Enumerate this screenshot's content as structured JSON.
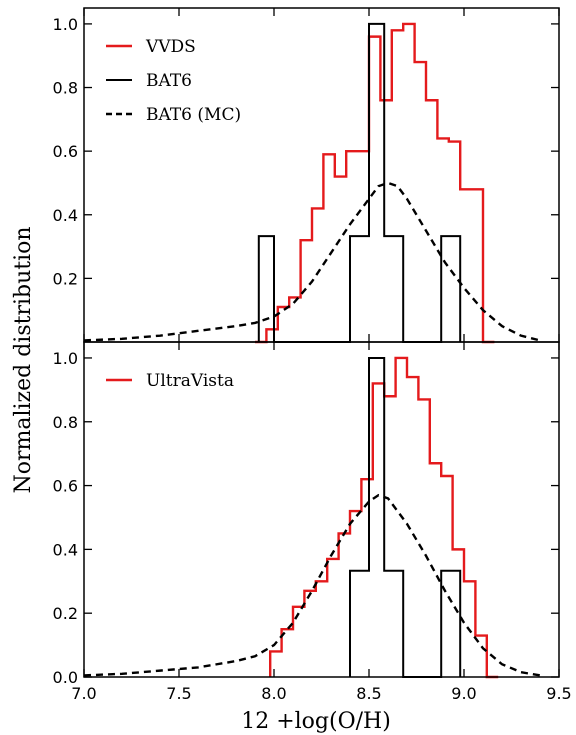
{
  "chart_data": [
    {
      "type": "histogram-step",
      "panel": "top",
      "xlim": [
        7.0,
        9.5
      ],
      "ylim": [
        0.0,
        1.05
      ],
      "yticks": [
        0.2,
        0.4,
        0.6,
        0.8,
        1.0
      ],
      "ytick_labels": [
        "0.2",
        "0.4",
        "0.6",
        "0.8",
        "1.0"
      ],
      "legend_position": "top-left",
      "series": [
        {
          "name": "VVDS",
          "color": "#e41a1c",
          "style": "step",
          "edges": [
            7.9,
            7.96,
            8.02,
            8.08,
            8.14,
            8.2,
            8.26,
            8.32,
            8.38,
            8.44,
            8.5,
            8.56,
            8.62,
            8.68,
            8.74,
            8.8,
            8.86,
            8.92,
            8.98,
            9.04,
            9.1,
            9.16
          ],
          "values": [
            0.0,
            0.04,
            0.11,
            0.14,
            0.32,
            0.42,
            0.59,
            0.52,
            0.6,
            0.6,
            0.96,
            0.76,
            0.98,
            1.0,
            0.88,
            0.76,
            0.64,
            0.63,
            0.48,
            0.48,
            0.0
          ]
        },
        {
          "name": "BAT6",
          "color": "#000000",
          "style": "step",
          "edges": [
            7.92,
            8.0,
            8.4,
            8.5,
            8.58,
            8.68,
            8.88,
            8.98
          ],
          "values": [
            0.333,
            0.0,
            0.333,
            1.0,
            0.333,
            0.0,
            0.333
          ]
        },
        {
          "name": "BAT6 (MC)",
          "color": "#000000",
          "style": "dashed",
          "x": [
            7.0,
            7.2,
            7.4,
            7.6,
            7.8,
            7.9,
            8.0,
            8.1,
            8.2,
            8.3,
            8.4,
            8.5,
            8.55,
            8.6,
            8.65,
            8.7,
            8.8,
            8.9,
            9.0,
            9.1,
            9.2,
            9.3,
            9.4
          ],
          "y": [
            0.005,
            0.01,
            0.02,
            0.035,
            0.05,
            0.06,
            0.08,
            0.12,
            0.19,
            0.28,
            0.37,
            0.45,
            0.49,
            0.5,
            0.49,
            0.45,
            0.35,
            0.25,
            0.17,
            0.1,
            0.05,
            0.02,
            0.005
          ]
        }
      ]
    },
    {
      "type": "histogram-step",
      "panel": "bottom",
      "xlim": [
        7.0,
        9.5
      ],
      "ylim": [
        0.0,
        1.05
      ],
      "xticks": [
        7.0,
        7.5,
        8.0,
        8.5,
        9.0,
        9.5
      ],
      "xtick_labels": [
        "7.0",
        "7.5",
        "8.0",
        "8.5",
        "9.0",
        "9.5"
      ],
      "yticks": [
        0.0,
        0.2,
        0.4,
        0.6,
        0.8,
        1.0
      ],
      "ytick_labels": [
        "0.0",
        "0.2",
        "0.4",
        "0.6",
        "0.8",
        "1.0"
      ],
      "legend_position": "top-left",
      "series": [
        {
          "name": "UltraVista",
          "color": "#e41a1c",
          "style": "step",
          "edges": [
            7.98,
            8.04,
            8.1,
            8.16,
            8.22,
            8.28,
            8.34,
            8.4,
            8.46,
            8.52,
            8.58,
            8.64,
            8.7,
            8.76,
            8.82,
            8.88,
            8.94,
            9.0,
            9.06,
            9.12,
            9.18
          ],
          "values": [
            0.08,
            0.15,
            0.22,
            0.27,
            0.3,
            0.37,
            0.45,
            0.52,
            0.62,
            0.92,
            0.88,
            1.0,
            0.94,
            0.87,
            0.67,
            0.63,
            0.4,
            0.3,
            0.13,
            0.0
          ]
        },
        {
          "name": "BAT6",
          "color": "#000000",
          "style": "step",
          "edges": [
            8.4,
            8.5,
            8.58,
            8.68,
            8.88,
            8.98
          ],
          "values": [
            0.333,
            1.0,
            0.333,
            0.0,
            0.333
          ]
        },
        {
          "name": "BAT6 (MC)",
          "color": "#000000",
          "style": "dashed",
          "x": [
            7.0,
            7.2,
            7.4,
            7.6,
            7.8,
            7.9,
            8.0,
            8.1,
            8.2,
            8.3,
            8.4,
            8.5,
            8.55,
            8.6,
            8.7,
            8.8,
            8.9,
            9.0,
            9.1,
            9.2,
            9.3,
            9.4
          ],
          "y": [
            0.005,
            0.01,
            0.02,
            0.03,
            0.05,
            0.065,
            0.1,
            0.17,
            0.27,
            0.38,
            0.48,
            0.55,
            0.57,
            0.56,
            0.48,
            0.38,
            0.27,
            0.17,
            0.09,
            0.04,
            0.015,
            0.005
          ]
        }
      ]
    }
  ],
  "xlabel": "12 +log(O/H)",
  "ylabel": "Normalized distribution"
}
